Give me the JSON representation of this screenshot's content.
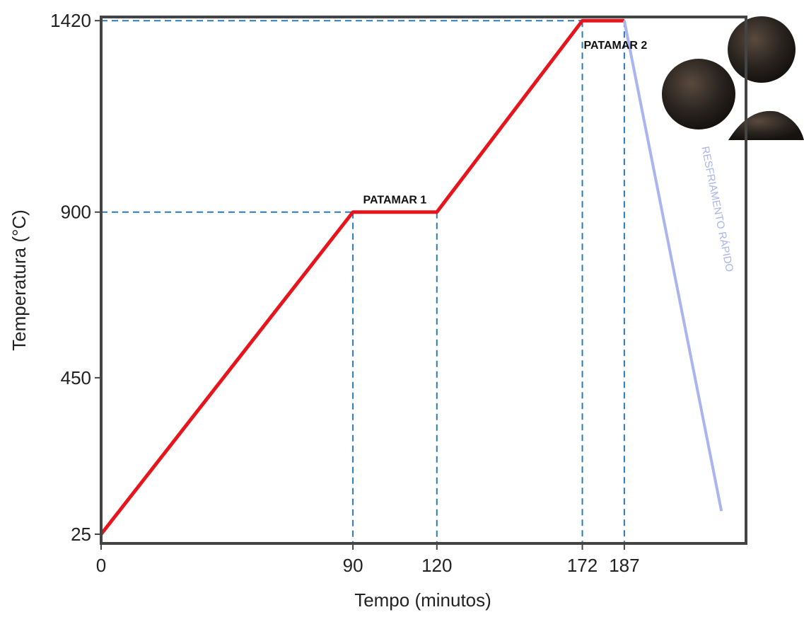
{
  "chart_data": {
    "type": "line",
    "x_label": "Tempo (minutos)",
    "y_label": "Temperatura (°C)",
    "series": [
      {
        "color": "#e8141b",
        "x": [
          0,
          90,
          120,
          172,
          187
        ],
        "values": [
          25,
          900,
          900,
          1420,
          1420
        ]
      },
      {
        "color": "#aab4ee",
        "x": [
          187,
          221.7
        ],
        "values": [
          1420,
          88
        ]
      }
    ],
    "annotations": [
      "PATAMAR 1",
      "PATAMAR 2",
      "RESFRIAMENTO RÁPIDO"
    ],
    "xlim": [
      0,
      230.5
    ],
    "ylim": [
      0,
      1430
    ],
    "xticks": [
      0,
      90,
      120,
      172,
      187
    ],
    "yticks": [
      25,
      450,
      900,
      1420
    ],
    "guide_color": "#2a7ab8"
  }
}
